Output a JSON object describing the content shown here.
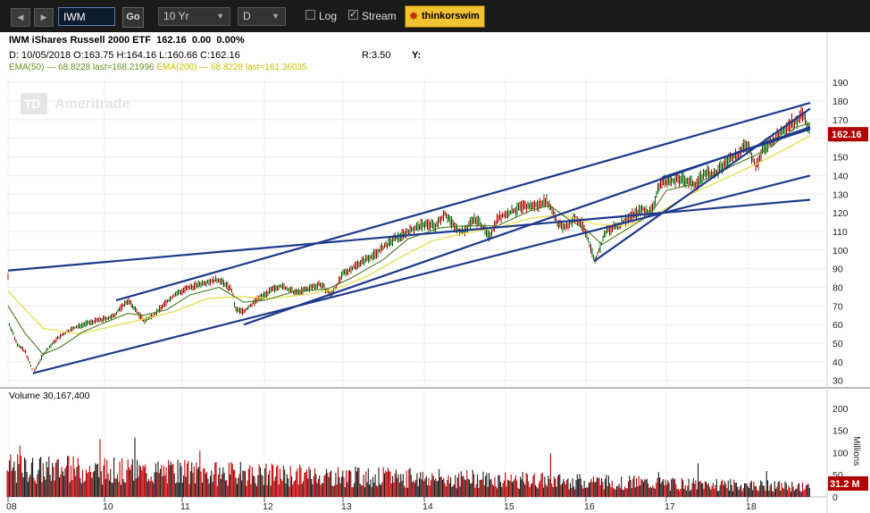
{
  "toolbar": {
    "symbol": "IWM",
    "go_label": "Go",
    "period": "10 Yr",
    "interval": "D",
    "log_label": "Log",
    "log_checked": false,
    "stream_label": "Stream",
    "stream_checked": true,
    "brand_label": "thinkorswim"
  },
  "header": {
    "title": "IWM iShares Russell 2000 ETF",
    "last": "162.16",
    "change": "0.00",
    "change_pct": "0.00%",
    "ohlc": "D: 10/05/2018 O:163.75 H:164.16 L:160.66 C:162.16",
    "ema50": "EMA(50) — 68.8228 last=168.21996",
    "ema200": "EMA(200) — 68.8228 last=161.36035",
    "ratio": "R:3.50",
    "y_label": "Y:"
  },
  "watermark": "Ameritrade",
  "watermark_mark": "TD",
  "colors": {
    "up": "#006400",
    "down": "#b00000",
    "trendline": "#1e3a8c",
    "ema50": "#4a7a1f",
    "ema200": "#e6e04a",
    "price_badge": "#b00000"
  },
  "chart_data": {
    "type": "line",
    "symbol": "IWM",
    "last_price": "162.16",
    "last_volume": "31.2 M",
    "volume_label": "Volume 30,167,400",
    "volume_unit": "Millions",
    "x_ticks": [
      "08",
      "10",
      "11",
      "12",
      "13",
      "14",
      "15",
      "16",
      "17",
      "18"
    ],
    "y_ticks": [
      30,
      40,
      50,
      60,
      70,
      80,
      90,
      100,
      110,
      120,
      130,
      140,
      150,
      160,
      170,
      180,
      190
    ],
    "ylim": [
      27,
      192
    ],
    "volume_ticks": [
      0,
      50,
      100,
      150,
      200
    ],
    "volume_ylim": [
      0,
      210
    ],
    "xlim": [
      2008.9,
      2018.77
    ],
    "price": [
      [
        2008.9,
        62
      ],
      [
        2009.0,
        50
      ],
      [
        2009.1,
        45
      ],
      [
        2009.19,
        34
      ],
      [
        2009.3,
        44
      ],
      [
        2009.45,
        52
      ],
      [
        2009.6,
        57
      ],
      [
        2009.75,
        60
      ],
      [
        2009.9,
        62
      ],
      [
        2010.1,
        64
      ],
      [
        2010.3,
        73
      ],
      [
        2010.4,
        68
      ],
      [
        2010.5,
        62
      ],
      [
        2010.6,
        64
      ],
      [
        2010.75,
        70
      ],
      [
        2010.9,
        76
      ],
      [
        2011.1,
        80
      ],
      [
        2011.3,
        83
      ],
      [
        2011.45,
        84
      ],
      [
        2011.6,
        79
      ],
      [
        2011.65,
        68
      ],
      [
        2011.75,
        67
      ],
      [
        2011.9,
        73
      ],
      [
        2012.0,
        76
      ],
      [
        2012.2,
        81
      ],
      [
        2012.4,
        77
      ],
      [
        2012.55,
        79
      ],
      [
        2012.7,
        82
      ],
      [
        2012.85,
        76
      ],
      [
        2013.0,
        87
      ],
      [
        2013.2,
        93
      ],
      [
        2013.4,
        98
      ],
      [
        2013.6,
        105
      ],
      [
        2013.8,
        110
      ],
      [
        2014.0,
        114
      ],
      [
        2014.15,
        113
      ],
      [
        2014.25,
        120
      ],
      [
        2014.4,
        111
      ],
      [
        2014.5,
        110
      ],
      [
        2014.6,
        117
      ],
      [
        2014.7,
        114
      ],
      [
        2014.8,
        107
      ],
      [
        2014.9,
        117
      ],
      [
        2015.0,
        119
      ],
      [
        2015.2,
        123
      ],
      [
        2015.4,
        124
      ],
      [
        2015.5,
        127
      ],
      [
        2015.6,
        120
      ],
      [
        2015.65,
        114
      ],
      [
        2015.75,
        112
      ],
      [
        2015.85,
        117
      ],
      [
        2015.95,
        114
      ],
      [
        2016.05,
        103
      ],
      [
        2016.11,
        94
      ],
      [
        2016.25,
        110
      ],
      [
        2016.4,
        113
      ],
      [
        2016.55,
        118
      ],
      [
        2016.7,
        122
      ],
      [
        2016.8,
        120
      ],
      [
        2016.87,
        128
      ],
      [
        2016.92,
        136
      ],
      [
        2017.0,
        137
      ],
      [
        2017.2,
        138
      ],
      [
        2017.35,
        135
      ],
      [
        2017.5,
        142
      ],
      [
        2017.6,
        140
      ],
      [
        2017.75,
        148
      ],
      [
        2017.9,
        152
      ],
      [
        2018.0,
        157
      ],
      [
        2018.1,
        144
      ],
      [
        2018.2,
        155
      ],
      [
        2018.35,
        160
      ],
      [
        2018.5,
        167
      ],
      [
        2018.6,
        170
      ],
      [
        2018.68,
        172
      ],
      [
        2018.72,
        169
      ],
      [
        2018.77,
        162.16
      ]
    ],
    "ema50": [
      [
        2008.9,
        70
      ],
      [
        2009.1,
        55
      ],
      [
        2009.3,
        44
      ],
      [
        2009.5,
        48
      ],
      [
        2009.75,
        56
      ],
      [
        2010.0,
        61
      ],
      [
        2010.3,
        66
      ],
      [
        2010.5,
        65
      ],
      [
        2010.8,
        68
      ],
      [
        2011.1,
        76
      ],
      [
        2011.45,
        80
      ],
      [
        2011.75,
        72
      ],
      [
        2012.0,
        73
      ],
      [
        2012.4,
        78
      ],
      [
        2012.8,
        79
      ],
      [
        2013.1,
        85
      ],
      [
        2013.5,
        95
      ],
      [
        2013.8,
        106
      ],
      [
        2014.2,
        112
      ],
      [
        2014.5,
        113
      ],
      [
        2014.9,
        113
      ],
      [
        2015.3,
        121
      ],
      [
        2015.55,
        124
      ],
      [
        2015.8,
        116
      ],
      [
        2016.0,
        111
      ],
      [
        2016.2,
        103
      ],
      [
        2016.5,
        111
      ],
      [
        2016.8,
        119
      ],
      [
        2017.0,
        132
      ],
      [
        2017.4,
        136
      ],
      [
        2017.8,
        145
      ],
      [
        2018.1,
        151
      ],
      [
        2018.3,
        156
      ],
      [
        2018.6,
        166
      ],
      [
        2018.77,
        168.2
      ]
    ],
    "ema200": [
      [
        2008.9,
        78
      ],
      [
        2009.3,
        58
      ],
      [
        2009.7,
        55
      ],
      [
        2010.1,
        59
      ],
      [
        2010.5,
        63
      ],
      [
        2010.9,
        67
      ],
      [
        2011.3,
        74
      ],
      [
        2011.7,
        75
      ],
      [
        2012.1,
        74
      ],
      [
        2012.5,
        76
      ],
      [
        2012.9,
        79
      ],
      [
        2013.3,
        86
      ],
      [
        2013.7,
        96
      ],
      [
        2014.1,
        105
      ],
      [
        2014.5,
        109
      ],
      [
        2014.9,
        112
      ],
      [
        2015.3,
        117
      ],
      [
        2015.7,
        119
      ],
      [
        2016.1,
        114
      ],
      [
        2016.5,
        113
      ],
      [
        2016.9,
        120
      ],
      [
        2017.3,
        130
      ],
      [
        2017.7,
        138
      ],
      [
        2018.1,
        146
      ],
      [
        2018.5,
        155
      ],
      [
        2018.77,
        161.36
      ]
    ],
    "trendlines": [
      [
        [
          2008.9,
          89
        ],
        [
          2018.77,
          127
        ]
      ],
      [
        [
          2009.19,
          34
        ],
        [
          2018.77,
          140
        ]
      ],
      [
        [
          2010.15,
          73
        ],
        [
          2018.77,
          179
        ]
      ],
      [
        [
          2011.75,
          60
        ],
        [
          2018.77,
          166
        ]
      ],
      [
        [
          2016.1,
          94
        ],
        [
          2018.77,
          176
        ]
      ],
      [
        [
          2016.95,
          139
        ],
        [
          2018.77,
          165
        ]
      ]
    ]
  }
}
